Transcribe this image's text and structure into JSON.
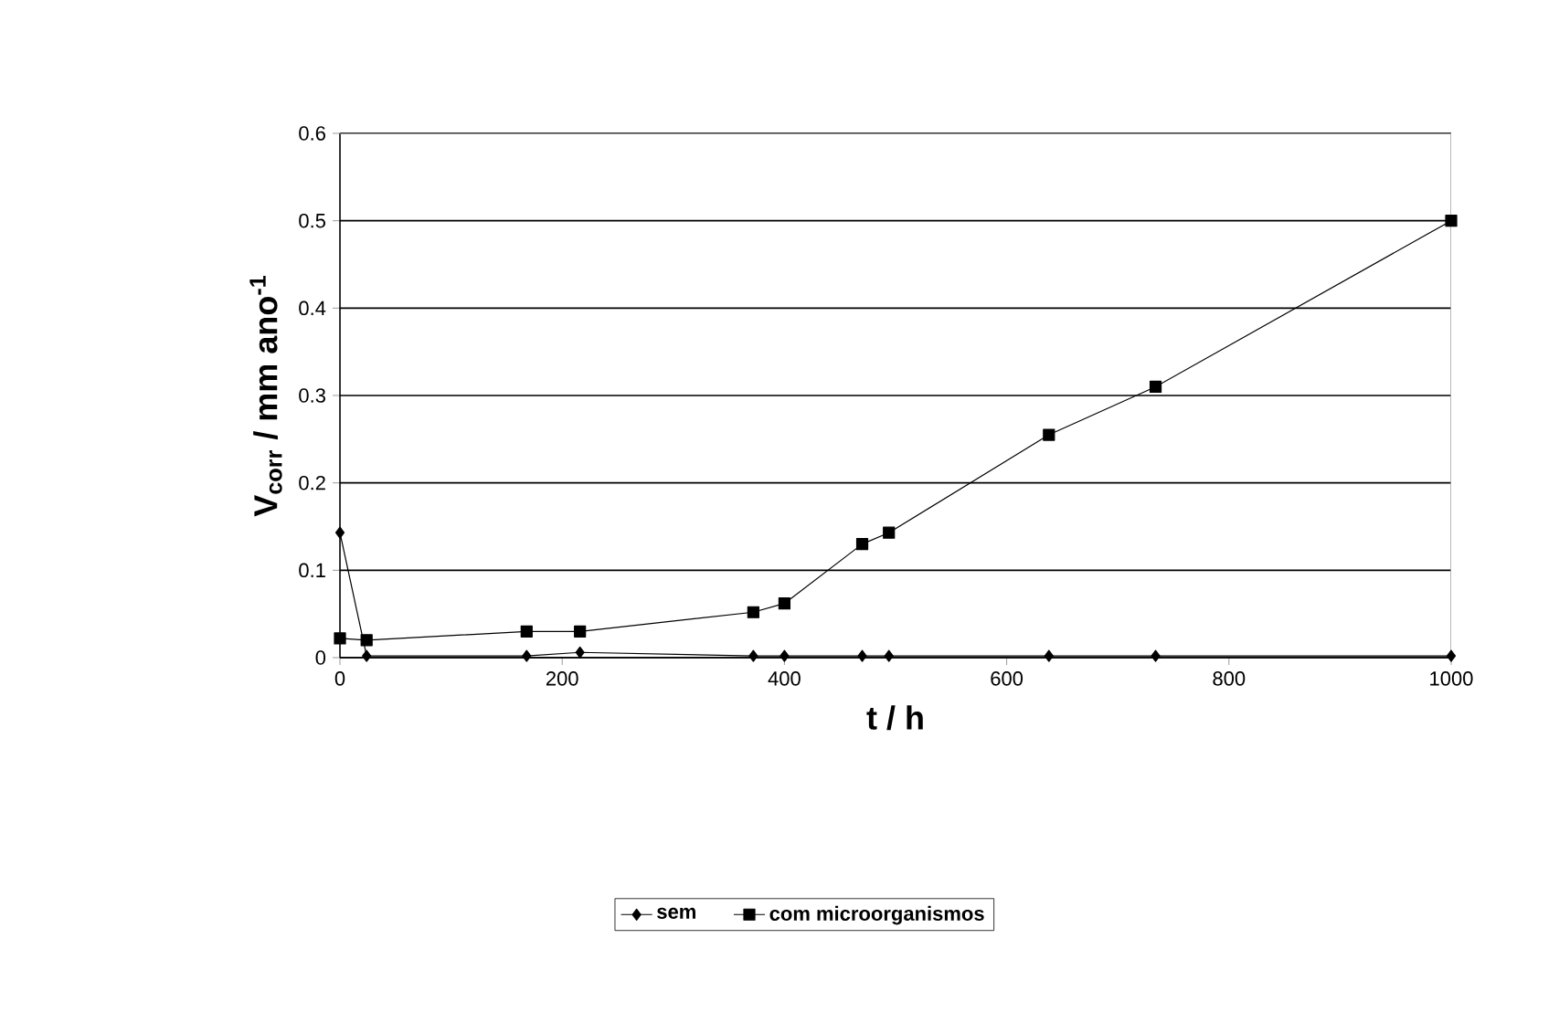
{
  "chart_data": {
    "type": "line",
    "xlabel": "t / h",
    "ylabel": "V$_{corr}$ / mm ano$^{-1}$",
    "x": [
      0,
      24,
      168,
      216,
      372,
      400,
      470,
      494,
      638,
      734,
      1000
    ],
    "series": [
      {
        "name": "sem",
        "color": "#000000",
        "marker": "diamond",
        "values": [
          0.143,
          0.002,
          0.002,
          0.006,
          0.002,
          0.002,
          0.002,
          0.002,
          0.002,
          0.002,
          0.002
        ]
      },
      {
        "name": "com microorganismos",
        "color": "#000000",
        "marker": "square",
        "values": [
          0.022,
          0.02,
          0.03,
          0.03,
          0.052,
          0.062,
          0.13,
          0.143,
          0.255,
          0.31,
          0.5
        ]
      }
    ],
    "xlim": [
      0,
      1000
    ],
    "xticks": [
      0,
      200,
      400,
      600,
      800,
      1000
    ],
    "ylim": [
      0,
      0.6
    ],
    "yticks": [
      {
        "value": 0,
        "label": "0"
      },
      0.1,
      0.2,
      0.3,
      0.4,
      0.5,
      0.6
    ],
    "grid": "y",
    "legend": "bottom",
    "line_style": "solid"
  }
}
